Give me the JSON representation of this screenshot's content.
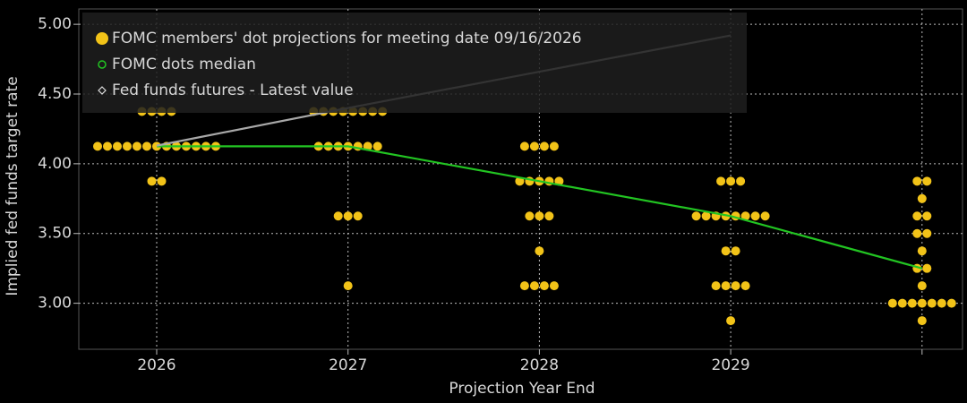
{
  "chart_data": {
    "type": "dot",
    "x_label": "Projection Year End",
    "y_label": "Implied fed funds target rate",
    "categories": [
      "2026",
      "2027",
      "2028",
      "2029",
      null
    ],
    "ylim": [
      2.67,
      5.11
    ],
    "yticks": [
      {
        "value": 3,
        "label": "3.00"
      },
      {
        "value": 3.5,
        "label": "3.50"
      },
      {
        "value": 4,
        "label": "4.00"
      },
      {
        "value": 4.5,
        "label": "4.50"
      },
      {
        "value": 5,
        "label": "5.00"
      }
    ],
    "grid": true,
    "legend": "top-left",
    "series": [
      {
        "name": "FOMC members' dot projections for meeting date 09/16/2026",
        "color": "#f2c318",
        "type": "dot",
        "values": [
          [
            4.375,
            4.375,
            4.375,
            4.375,
            4.125,
            4.125,
            4.125,
            4.125,
            4.125,
            4.125,
            4.125,
            4.125,
            4.125,
            4.125,
            4.125,
            4.125,
            4.125,
            3.875,
            3.875
          ],
          [
            4.375,
            4.375,
            4.375,
            4.375,
            4.375,
            4.375,
            4.375,
            4.375,
            4.125,
            4.125,
            4.125,
            4.125,
            4.125,
            4.125,
            4.125,
            3.625,
            3.625,
            3.625,
            3.125
          ],
          [
            4.125,
            4.125,
            4.125,
            4.125,
            3.875,
            3.875,
            3.875,
            3.875,
            3.875,
            3.625,
            3.625,
            3.625,
            3.375,
            3.125,
            3.125,
            3.125,
            3.125
          ],
          [
            3.875,
            3.875,
            3.875,
            3.625,
            3.625,
            3.625,
            3.625,
            3.625,
            3.625,
            3.625,
            3.625,
            3.375,
            3.375,
            3.125,
            3.125,
            3.125,
            3.125,
            2.875
          ],
          [
            3.875,
            3.875,
            3.75,
            3.625,
            3.625,
            3.5,
            3.5,
            3.375,
            3.25,
            3.25,
            3.125,
            3,
            3,
            3,
            3,
            3,
            3,
            3,
            2.875
          ]
        ]
      },
      {
        "name": "FOMC dots median",
        "color": "#22c422",
        "type": "line",
        "values": [
          4.125,
          4.125,
          3.875,
          3.625,
          3.25
        ]
      },
      {
        "name": "Fed funds futures - Latest value",
        "color": "#a8a8a8",
        "type": "line",
        "values": [
          4.13,
          4.4,
          4.66,
          4.92,
          null
        ]
      }
    ]
  }
}
